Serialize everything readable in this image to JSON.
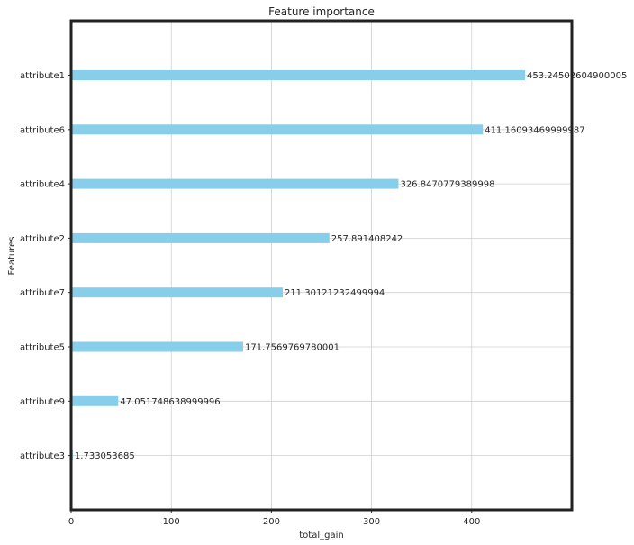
{
  "chart_data": {
    "type": "bar",
    "orientation": "horizontal",
    "title": "Feature importance",
    "xlabel": "total_gain",
    "ylabel": "Features",
    "xlim": [
      0,
      500
    ],
    "xticks": [
      0,
      100,
      200,
      300,
      400
    ],
    "grid": true,
    "bar_color": "#87ceeb",
    "categories": [
      "attribute1",
      "attribute6",
      "attribute4",
      "attribute2",
      "attribute7",
      "attribute5",
      "attribute9",
      "attribute3"
    ],
    "values": [
      453.24502604900005,
      411.16093469999987,
      326.8470779389998,
      257.891408242,
      211.30121232499994,
      171.7569769780001,
      47.051748638999996,
      1.733053685
    ],
    "value_labels": [
      "453.24502604900005",
      "411.16093469999987",
      "326.8470779389998",
      "257.891408242",
      "211.30121232499994",
      "171.7569769780001",
      "47.051748638999996",
      "1.733053685"
    ]
  }
}
